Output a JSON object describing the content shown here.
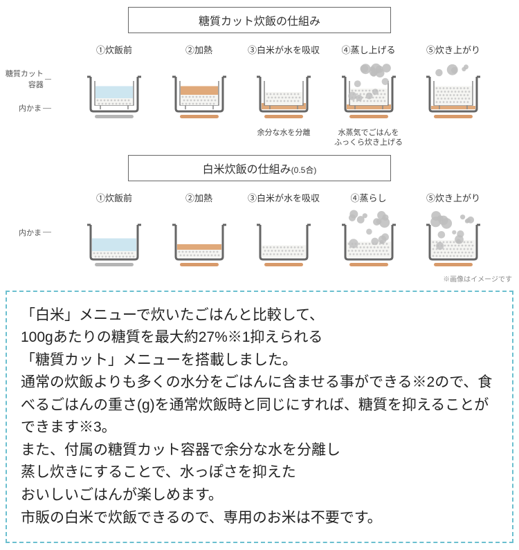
{
  "colors": {
    "pot_outline": "#666666",
    "pot_fill": "#ffffff",
    "water": "#cde6f0",
    "rice_white": "#f5f5f2",
    "rice_dot": "#cccccc",
    "liquid_orange": "#e0a97a",
    "heater": "#d89a6a",
    "steam": "#bdbdbd",
    "grey_bar": "#b5b5b5",
    "inner_outline": "#888888",
    "border_dashed": "#6bbfcf",
    "text": "#333333"
  },
  "section_a": {
    "title": "糖質カット炊飯の仕組み",
    "side_labels": [
      "糖質カット容器",
      "内かま"
    ],
    "stages": [
      {
        "label": "①炊飯前",
        "caption": "",
        "cfg": {
          "water": true,
          "inner": true,
          "rice_h": 0.2,
          "liquid_h": 0,
          "heater": false,
          "heater_color": "grey",
          "steam": 0
        }
      },
      {
        "label": "②加熱",
        "caption": "",
        "cfg": {
          "water": false,
          "inner": true,
          "rice_h": 0.3,
          "liquid_h": 0.55,
          "heater": true,
          "heater_color": "orange",
          "steam": 0
        }
      },
      {
        "label": "③白米が水を吸収",
        "caption": "余分な水を分離",
        "cfg": {
          "water": false,
          "inner": true,
          "rice_h": 0.38,
          "liquid_h": 0.18,
          "liquid_below": true,
          "heater": true,
          "heater_color": "orange",
          "steam": 0
        }
      },
      {
        "label": "④蒸し上げる",
        "caption": "水蒸気でごはんを\nふっくら炊き上げる",
        "cfg": {
          "water": false,
          "inner": true,
          "rice_h": 0.48,
          "liquid_h": 0.14,
          "liquid_below": true,
          "heater": true,
          "heater_color": "orange",
          "steam": 2
        }
      },
      {
        "label": "⑤炊き上がり",
        "caption": "",
        "cfg": {
          "water": false,
          "inner": true,
          "rice_h": 0.55,
          "liquid_h": 0.1,
          "liquid_below": true,
          "heater": true,
          "heater_color": "orange",
          "steam": 1
        }
      }
    ]
  },
  "section_b": {
    "title": "白米炊飯の仕組み",
    "title_sub": "(0.5合)",
    "side_labels": [
      "内かま"
    ],
    "stages": [
      {
        "label": "①炊飯前",
        "caption": "",
        "cfg": {
          "water": true,
          "inner": false,
          "rice_h": 0.18,
          "liquid_h": 0,
          "heater": true,
          "heater_color": "grey",
          "steam": 0
        }
      },
      {
        "label": "②加熱",
        "caption": "",
        "cfg": {
          "water": false,
          "inner": false,
          "rice_h": 0.22,
          "liquid_h": 0.38,
          "heater": true,
          "heater_color": "orange",
          "steam": 0
        }
      },
      {
        "label": "③白米が水を吸収",
        "caption": "",
        "cfg": {
          "water": false,
          "inner": false,
          "rice_h": 0.35,
          "liquid_h": 0,
          "heater": true,
          "heater_color": "orange",
          "steam": 0
        }
      },
      {
        "label": "④蒸らし",
        "caption": "",
        "cfg": {
          "water": false,
          "inner": false,
          "rice_h": 0.45,
          "liquid_h": 0,
          "heater": true,
          "heater_color": "orange",
          "steam": 2
        }
      },
      {
        "label": "⑤炊き上がり",
        "caption": "",
        "cfg": {
          "water": false,
          "inner": false,
          "rice_h": 0.5,
          "liquid_h": 0,
          "heater": true,
          "heater_color": "orange",
          "steam": 2
        }
      }
    ]
  },
  "image_note": "※画像はイメージです",
  "info_text": "「白米」メニューで炊いたごはんと比較して、\n100gあたりの糖質を最大約27%※1抑えられる\n「糖質カット」メニューを搭載しました。\n通常の炊飯よりも多くの水分をごはんに含ませる事ができる※2ので、食べるごはんの重さ(g)を通常炊飯時と同じにすれば、糖質を抑えることができます※3。\nまた、付属の糖質カット容器で余分な水を分離し\n蒸し炊きにすることで、水っぽさを抑えた\nおいしいごはんが楽しめます。\n市販の白米で炊飯できるので、専用のお米は不要です。"
}
